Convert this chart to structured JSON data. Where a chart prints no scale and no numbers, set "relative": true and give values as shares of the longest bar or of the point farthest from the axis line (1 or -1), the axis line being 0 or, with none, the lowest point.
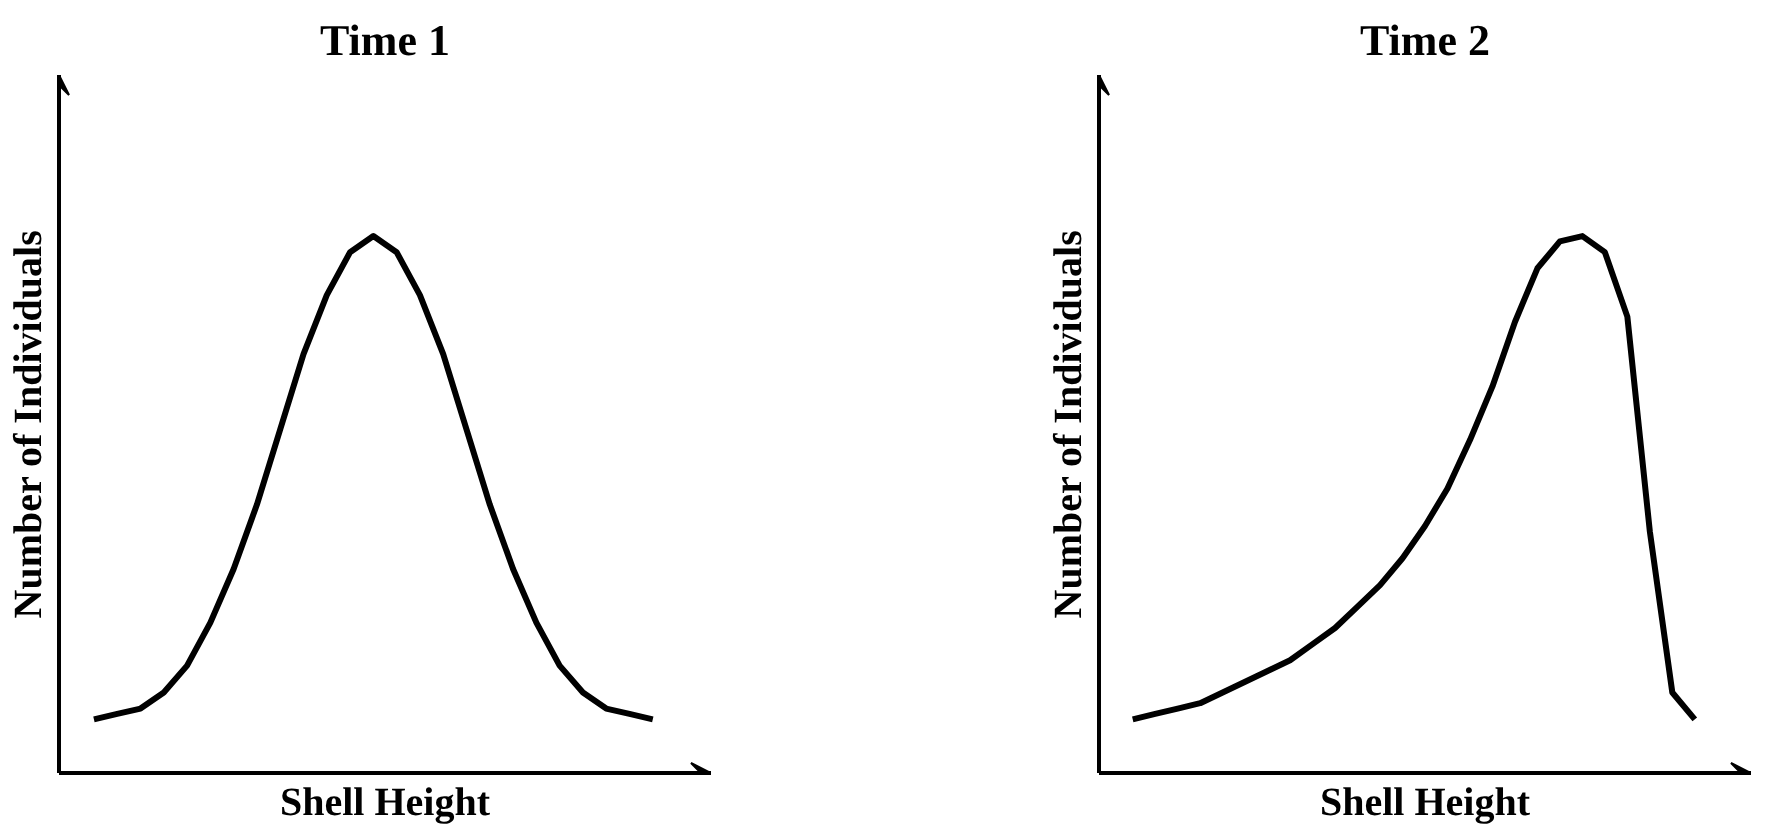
{
  "chart_data": [
    {
      "type": "line",
      "title": "Time 1",
      "xlabel": "Shell Height",
      "ylabel": "Number of Individuals",
      "relative": true,
      "color": "#000000",
      "categories": [
        null,
        null,
        null,
        null,
        null,
        null,
        null,
        null,
        null,
        null,
        null,
        null,
        null,
        null,
        null,
        null,
        null,
        null,
        null,
        null,
        null,
        null,
        null,
        null,
        null
      ],
      "values": [
        0.1,
        0.11,
        0.12,
        0.15,
        0.2,
        0.28,
        0.38,
        0.5,
        0.64,
        0.78,
        0.89,
        0.97,
        1.0,
        0.97,
        0.89,
        0.78,
        0.64,
        0.5,
        0.38,
        0.28,
        0.2,
        0.15,
        0.12,
        0.11,
        0.1
      ]
    },
    {
      "type": "line",
      "title": "Time 2",
      "xlabel": "Shell Height",
      "ylabel": "Number of Individuals",
      "relative": true,
      "color": "#000000",
      "categories": [
        null,
        null,
        null,
        null,
        null,
        null,
        null,
        null,
        null,
        null,
        null,
        null,
        null,
        null,
        null,
        null,
        null,
        null,
        null,
        null,
        null,
        null,
        null,
        null,
        null,
        null
      ],
      "values": [
        0.1,
        0.11,
        0.12,
        0.13,
        0.15,
        0.17,
        0.19,
        0.21,
        0.24,
        0.27,
        0.31,
        0.35,
        0.4,
        0.46,
        0.53,
        0.62,
        0.72,
        0.84,
        0.94,
        0.99,
        1.0,
        0.97,
        0.85,
        0.45,
        0.15,
        0.1
      ]
    }
  ]
}
